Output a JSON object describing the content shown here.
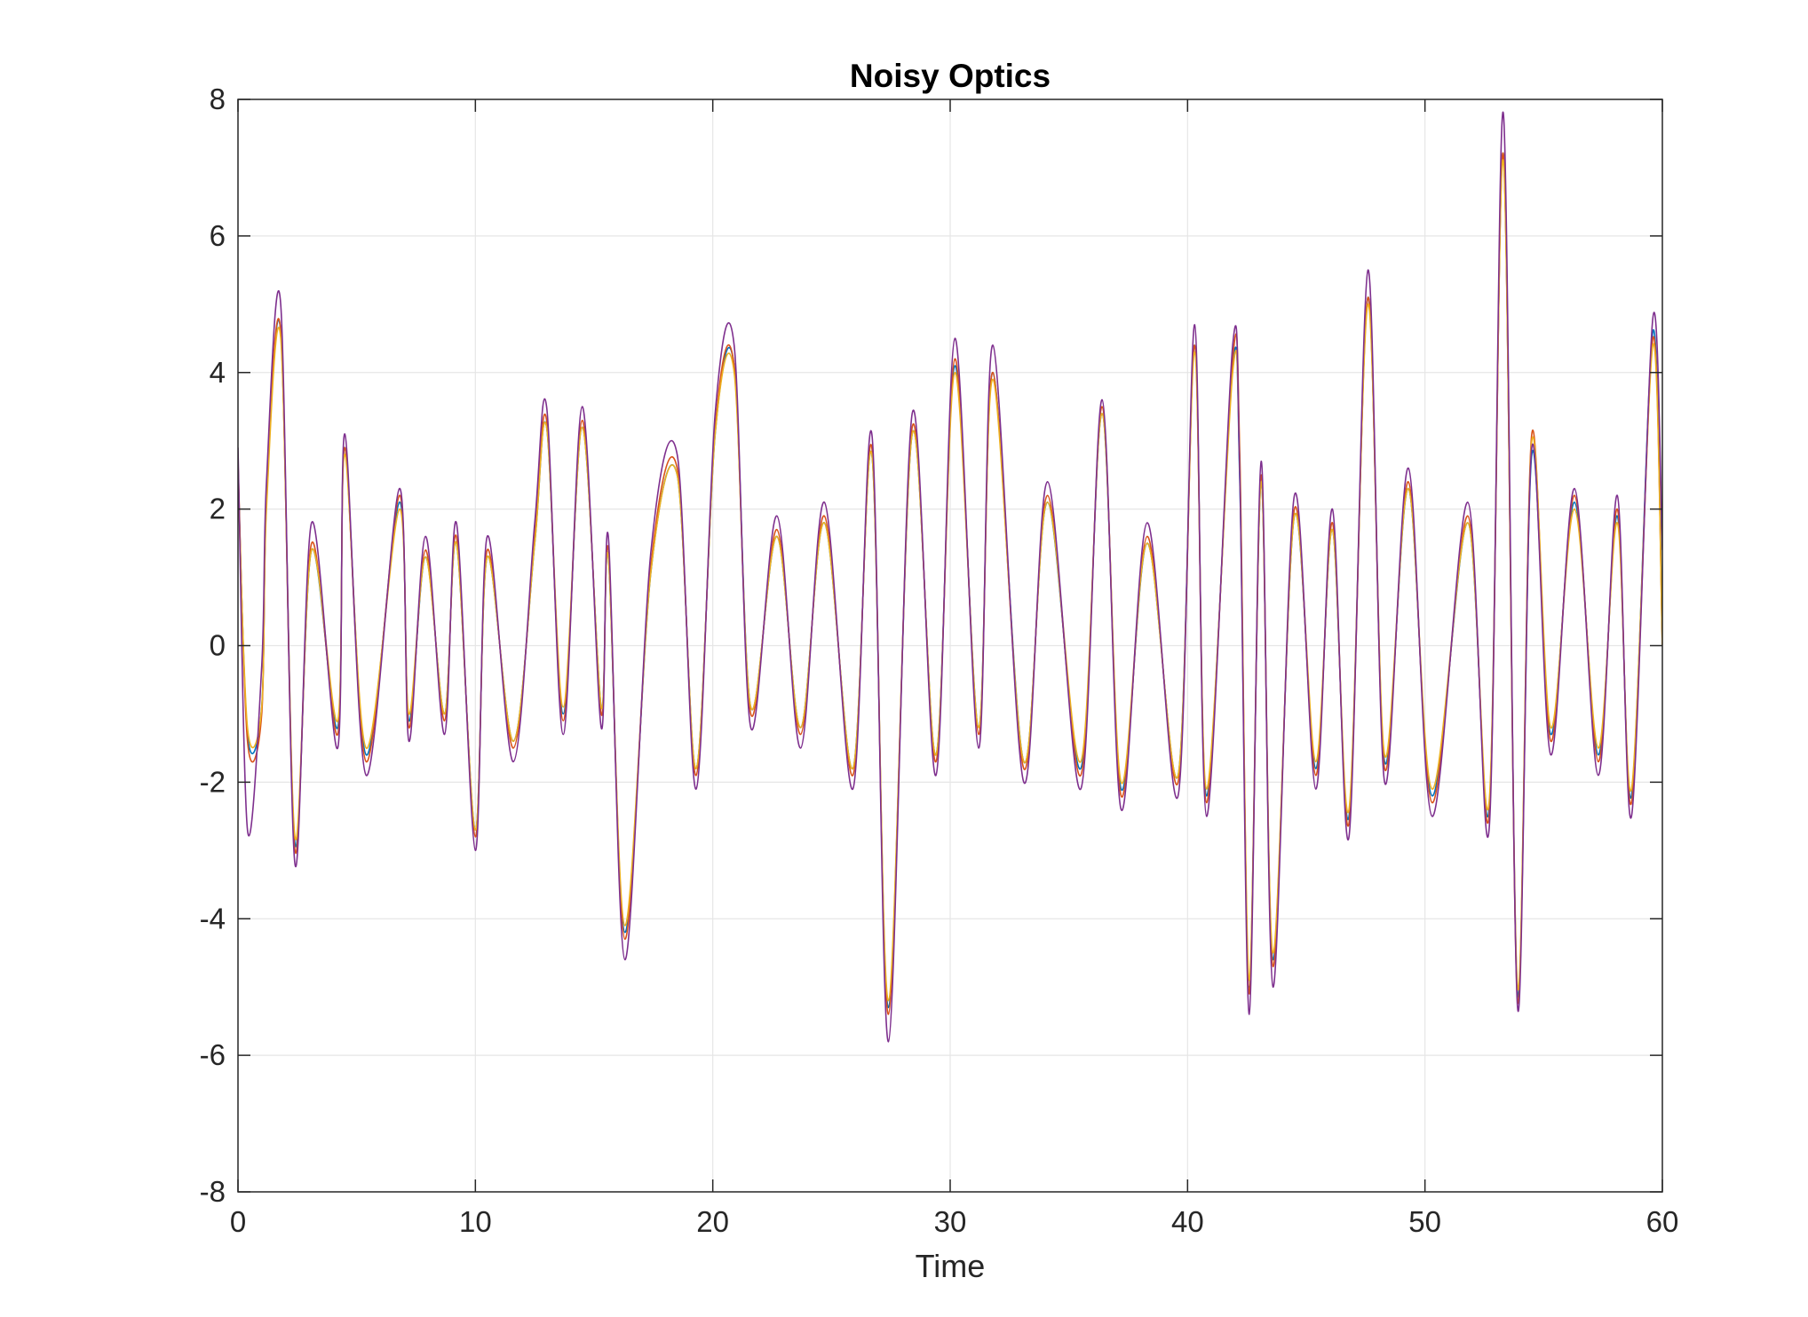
{
  "chart_data": {
    "type": "line",
    "title": "Noisy Optics",
    "xlabel": "Time",
    "ylabel": "",
    "xlim": [
      0,
      60
    ],
    "ylim": [
      -8,
      8
    ],
    "xticks": [
      0,
      10,
      20,
      30,
      40,
      50,
      60
    ],
    "xtick_labels": [
      "0",
      "10",
      "20",
      "30",
      "40",
      "50",
      "60"
    ],
    "yticks": [
      -8,
      -6,
      -4,
      -2,
      0,
      2,
      4,
      6,
      8
    ],
    "ytick_labels": [
      "-8",
      "-6",
      "-4",
      "-2",
      "0",
      "2",
      "4",
      "6",
      "8"
    ],
    "grid": true,
    "legend": "none",
    "colors": {
      "axes": "#262626",
      "grid": "#e6e6e6",
      "background": "#ffffff"
    },
    "series": [
      {
        "color": "#0072bd",
        "x": [
          0,
          0.4,
          1,
          1.2,
          1.8,
          2.4,
          3.1,
          4.2,
          4.5,
          5.4,
          6.8,
          7.2,
          7.9,
          8.7,
          9.2,
          10,
          10.5,
          11.6,
          12.5,
          13,
          13.7,
          14.5,
          15.3,
          15.6,
          16.3,
          17.4,
          18.5,
          19.3,
          20.1,
          20.9,
          21.6,
          22.7,
          23.7,
          24.7,
          25.9,
          26.7,
          27.4,
          28.4,
          29.4,
          30.2,
          31.2,
          31.8,
          33.1,
          34.1,
          35.5,
          36.4,
          37.2,
          38.3,
          39.6,
          40.3,
          40.8,
          41.9,
          42.2,
          42.6,
          43.1,
          43.6,
          44.5,
          45.4,
          46.1,
          46.8,
          47.6,
          48.3,
          49.3,
          50.3,
          51.8,
          52.7,
          53.3,
          53.9,
          54.5,
          55.3,
          56.3,
          57.3,
          58.1,
          58.7,
          59.6,
          60
        ],
        "values": [
          2.6,
          -1.3,
          -0.9,
          2.1,
          4.6,
          -2.9,
          1.4,
          -1.2,
          2.9,
          -1.6,
          2.1,
          -1.1,
          1.3,
          -1,
          1.5,
          -2.7,
          1.3,
          -1.4,
          1.5,
          3.2,
          -1,
          3.2,
          -0.9,
          1.3,
          -4.2,
          1.1,
          2.5,
          -1.8,
          3.1,
          4.1,
          -0.9,
          1.6,
          -1.2,
          1.8,
          -1.8,
          2.8,
          -5.3,
          3.1,
          -1.6,
          4.1,
          -1.2,
          4,
          -1.7,
          2.1,
          -1.8,
          3.4,
          -2.1,
          1.5,
          -1.9,
          4.4,
          -2.2,
          4.1,
          2.4,
          -5,
          2.4,
          -4.6,
          1.9,
          -1.8,
          1.7,
          -2.5,
          5.1,
          -1.7,
          2.3,
          -2.2,
          1.8,
          -2.4,
          7.2,
          -5.1,
          2.8,
          -1.3,
          2.1,
          -1.6,
          1.9,
          -2.2,
          4.6,
          0.1
        ]
      },
      {
        "color": "#d95319",
        "x": [
          0,
          0.4,
          1,
          1.2,
          1.8,
          2.4,
          3.1,
          4.2,
          4.5,
          5.4,
          6.8,
          7.2,
          7.9,
          8.7,
          9.2,
          10,
          10.5,
          11.6,
          12.5,
          13,
          13.7,
          14.5,
          15.3,
          15.6,
          16.3,
          17.4,
          18.5,
          19.3,
          20.1,
          20.9,
          21.6,
          22.7,
          23.7,
          24.7,
          25.9,
          26.7,
          27.4,
          28.4,
          29.4,
          30.2,
          31.2,
          31.8,
          33.1,
          34.1,
          35.5,
          36.4,
          37.2,
          38.3,
          39.6,
          40.3,
          40.8,
          41.9,
          42.2,
          42.6,
          43.1,
          43.6,
          44.5,
          45.4,
          46.1,
          46.8,
          47.6,
          48.3,
          49.3,
          50.3,
          51.8,
          52.7,
          53.3,
          53.9,
          54.5,
          55.3,
          56.3,
          57.3,
          58.1,
          58.7,
          59.6,
          60
        ],
        "values": [
          2.7,
          -1.4,
          -1,
          2.2,
          4.6,
          -3,
          1.5,
          -1.3,
          2.9,
          -1.7,
          2.2,
          -1.2,
          1.4,
          -1.1,
          1.6,
          -2.8,
          1.4,
          -1.5,
          1.6,
          3.3,
          -1.1,
          3.3,
          -1,
          1.4,
          -4.3,
          1.2,
          2.6,
          -1.9,
          3.2,
          4.1,
          -1,
          1.7,
          -1.3,
          1.9,
          -1.9,
          2.9,
          -5.4,
          3.2,
          -1.7,
          4.2,
          -1.3,
          4,
          -1.8,
          2.2,
          -1.9,
          3.5,
          -2.2,
          1.6,
          -2,
          4.4,
          -2.3,
          4.2,
          2.8,
          -5.1,
          2.5,
          -4.7,
          2,
          -1.9,
          1.8,
          -2.6,
          5.1,
          -1.8,
          2.4,
          -2.3,
          1.9,
          -2.5,
          7.2,
          -5.2,
          3.1,
          -1.4,
          2.2,
          -1.7,
          2,
          -2.3,
          4.5,
          0
        ]
      },
      {
        "color": "#edb120",
        "x": [
          0,
          0.4,
          1,
          1.2,
          1.8,
          2.4,
          3.1,
          4.2,
          4.5,
          5.4,
          6.8,
          7.2,
          7.9,
          8.7,
          9.2,
          10,
          10.5,
          11.6,
          12.5,
          13,
          13.7,
          14.5,
          15.3,
          15.6,
          16.3,
          17.4,
          18.5,
          19.3,
          20.1,
          20.9,
          21.6,
          22.7,
          23.7,
          24.7,
          25.9,
          26.7,
          27.4,
          28.4,
          29.4,
          30.2,
          31.2,
          31.8,
          33.1,
          34.1,
          35.5,
          36.4,
          37.2,
          38.3,
          39.6,
          40.3,
          40.8,
          41.9,
          42.2,
          42.6,
          43.1,
          43.6,
          44.5,
          45.4,
          46.1,
          46.8,
          47.6,
          48.3,
          49.3,
          50.3,
          51.8,
          52.7,
          53.3,
          53.9,
          54.5,
          55.3,
          56.3,
          57.3,
          58.1,
          58.7,
          59.6,
          60
        ],
        "values": [
          2.5,
          -1.2,
          -0.9,
          2,
          4.5,
          -2.8,
          1.4,
          -1.1,
          2.8,
          -1.5,
          2,
          -1,
          1.3,
          -1,
          1.5,
          -2.7,
          1.3,
          -1.4,
          1.5,
          3.2,
          -0.9,
          3.2,
          -0.9,
          1.3,
          -4.1,
          1.1,
          2.5,
          -1.8,
          3.1,
          4,
          -0.9,
          1.6,
          -1.2,
          1.8,
          -1.8,
          2.8,
          -5.2,
          3.1,
          -1.6,
          4,
          -1.2,
          3.9,
          -1.7,
          2.1,
          -1.7,
          3.4,
          -2,
          1.5,
          -1.9,
          4.3,
          -2.1,
          4,
          2.6,
          -4.9,
          2.4,
          -4.5,
          1.9,
          -1.7,
          1.7,
          -2.4,
          5,
          -1.6,
          2.3,
          -2.1,
          1.8,
          -2.3,
          7.1,
          -5,
          3,
          -1.2,
          2,
          -1.5,
          1.8,
          -2.1,
          4.4,
          0
        ]
      },
      {
        "color": "#7e2f8e",
        "x": [
          0,
          0.4,
          1,
          1.2,
          1.8,
          2.4,
          3.1,
          4.2,
          4.5,
          5.4,
          6.8,
          7.2,
          7.9,
          8.7,
          9.2,
          10,
          10.5,
          11.6,
          12.5,
          13,
          13.7,
          14.5,
          15.3,
          15.6,
          16.3,
          17.4,
          18.5,
          19.3,
          20.1,
          20.9,
          21.6,
          22.7,
          23.7,
          24.7,
          25.9,
          26.7,
          27.4,
          28.4,
          29.4,
          30.2,
          31.2,
          31.8,
          33.1,
          34.1,
          35.5,
          36.4,
          37.2,
          38.3,
          39.6,
          40.3,
          40.8,
          41.9,
          42.2,
          42.6,
          43.1,
          43.6,
          44.5,
          45.4,
          46.1,
          46.8,
          47.6,
          48.3,
          49.3,
          50.3,
          51.8,
          52.7,
          53.3,
          53.9,
          54.5,
          55.3,
          56.3,
          57.3,
          58.1,
          58.7,
          59.6,
          60
        ],
        "values": [
          2.9,
          -2.7,
          -0.3,
          2.4,
          5,
          -3.2,
          1.8,
          -1.5,
          3.1,
          -1.9,
          2.3,
          -1.4,
          1.6,
          -1.3,
          1.8,
          -3,
          1.6,
          -1.7,
          1.8,
          3.5,
          -1.3,
          3.5,
          -1.2,
          1.6,
          -4.6,
          1.4,
          2.8,
          -2.1,
          3.4,
          4.4,
          -1.2,
          1.9,
          -1.5,
          2.1,
          -2.1,
          3.1,
          -5.8,
          3.4,
          -1.9,
          4.5,
          -1.5,
          4.4,
          -2,
          2.4,
          -2.1,
          3.6,
          -2.4,
          1.8,
          -2.2,
          4.7,
          -2.5,
          4.4,
          2.5,
          -5.4,
          2.7,
          -5,
          2.2,
          -2.1,
          2,
          -2.8,
          5.5,
          -2,
          2.6,
          -2.5,
          2.1,
          -2.7,
          7.8,
          -5.3,
          2.9,
          -1.6,
          2.3,
          -1.9,
          2.2,
          -2.5,
          4.8,
          1.4
        ]
      }
    ]
  }
}
